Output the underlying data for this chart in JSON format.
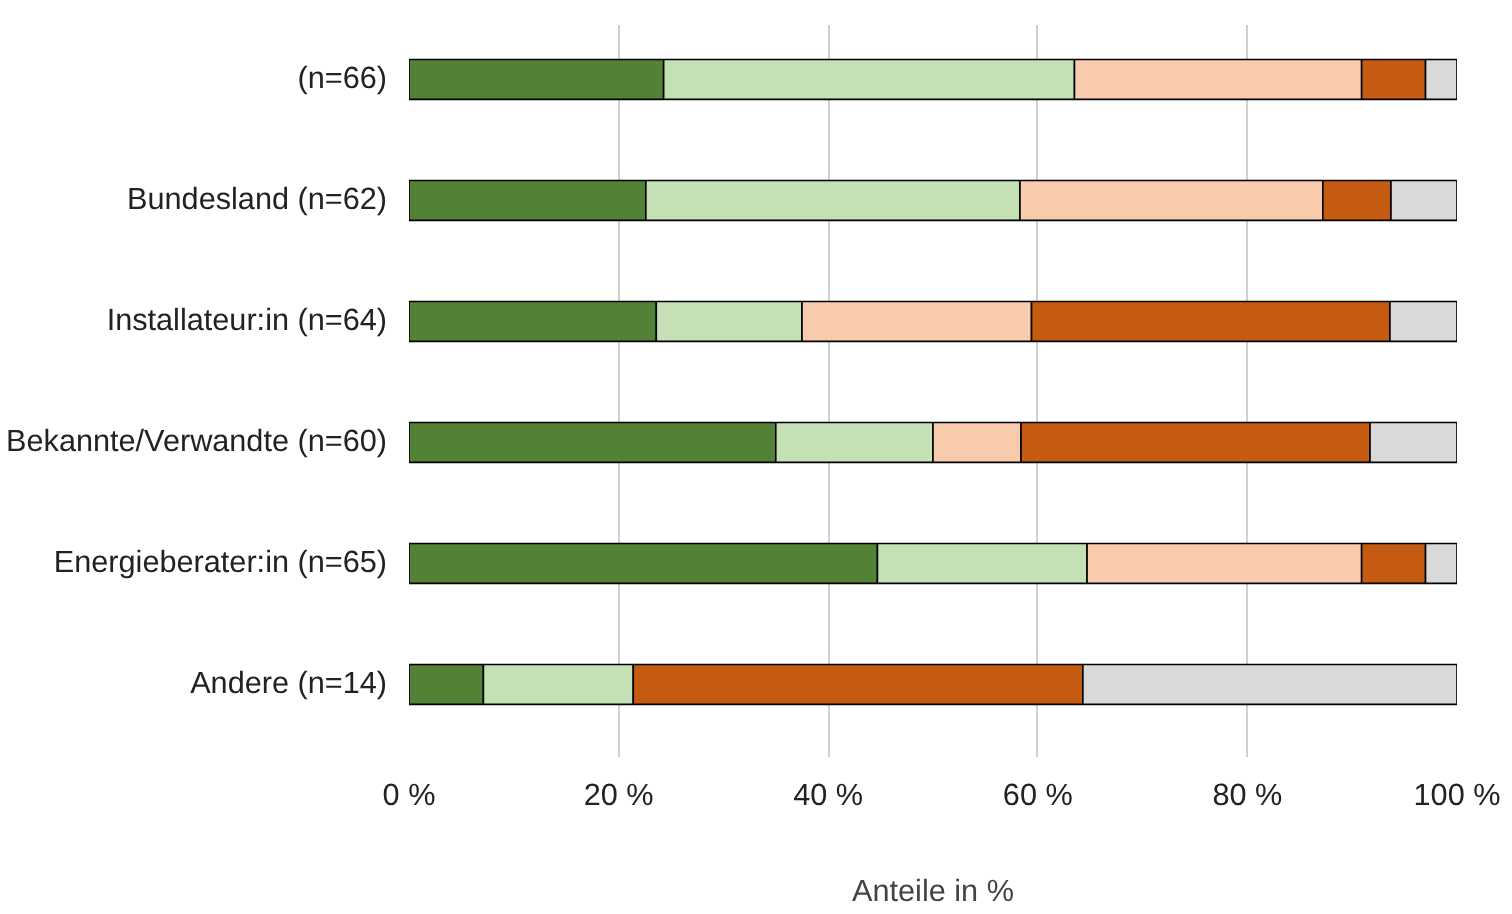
{
  "chart_data": {
    "type": "bar",
    "orientation": "horizontal",
    "stacked": true,
    "categories": [
      "(n=66)",
      "Bundesland (n=62)",
      "Installateur:in (n=64)",
      "Bekannte/Verwandte (n=60)",
      "Energieberater:in (n=65)",
      "Andere (n=14)"
    ],
    "series": [
      {
        "color": "#538135",
        "values": [
          24.3,
          22.6,
          23.6,
          35.0,
          44.7,
          7.1
        ]
      },
      {
        "color": "#c5e0b4",
        "values": [
          39.2,
          35.7,
          13.9,
          15.0,
          20.0,
          14.3
        ]
      },
      {
        "color": "#f8cbad",
        "values": [
          27.4,
          28.9,
          21.9,
          8.4,
          26.2,
          null
        ]
      },
      {
        "color": "#c55a11",
        "values": [
          6.1,
          6.5,
          34.2,
          33.3,
          6.1,
          42.9
        ]
      },
      {
        "color": "#d9d9d9",
        "values": [
          3.0,
          6.3,
          6.4,
          8.3,
          3.0,
          35.7
        ]
      }
    ],
    "xlim": [
      0,
      100
    ],
    "xticks": [
      {
        "value": 0,
        "label": "0 %"
      },
      {
        "value": 20,
        "label": "20 %"
      },
      {
        "value": 40,
        "label": "40 %"
      },
      {
        "value": 60,
        "label": "60 %"
      },
      {
        "value": 80,
        "label": "80 %"
      },
      {
        "value": 100,
        "label": "100 %"
      }
    ],
    "xlabel": "Anteile in %",
    "grid": "x"
  }
}
